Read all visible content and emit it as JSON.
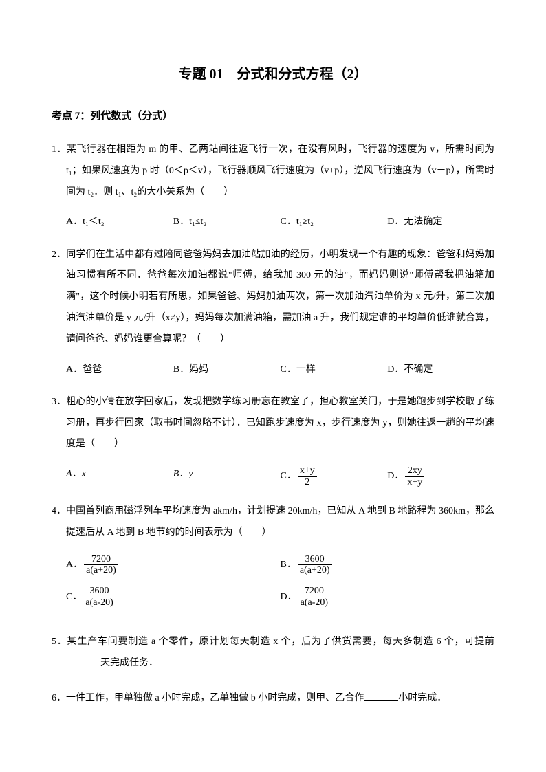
{
  "title": "专题 01　分式和分式方程（2）",
  "section_heading": "考点 7：列代数式（分式）",
  "q1": {
    "text": "1．某飞行器在相距为 m 的甲、乙两站间往返飞行一次，在没有风时，飞行器的速度为 v，所需时间为 t₁；如果风速度为 p 时（0＜p＜v），飞行器顺风飞行速度为（v+p），逆风飞行速度为（v－p），所需时间为 t₂．则 t₁、t₂的大小关系为（　　）",
    "optA": "A．t₁＜t₂",
    "optB": "B．t₁≤t₂",
    "optC": "C．t₁≥t₂",
    "optD": "D．无法确定"
  },
  "q2": {
    "text": "2．同学们在生活中都有过陪同爸爸妈妈去加油站加油的经历，小明发现一个有趣的现象：爸爸和妈妈加油习惯有所不同．爸爸每次加油都说\"师傅，给我加 300 元的油\"，而妈妈则说\"师傅帮我把油箱加满\"，这个时候小明若有所思，如果爸爸、妈妈加油两次，第一次加油汽油单价为 x 元/升，第二次加油汽油单价是 y 元/升（x≠y），妈妈每次加满油箱，需加油 a 升，我们规定谁的平均单价低谁就合算，请问爸爸、妈妈谁更合算呢？（　　）",
    "optA": "A．爸爸",
    "optB": "B．妈妈",
    "optC": "C．一样",
    "optD": "D．不确定"
  },
  "q3": {
    "text": "3．粗心的小倩在放学回家后，发现把数学练习册忘在教室了，担心教室关门，于是她跑步到学校取了练习册，再步行回家（取书时间忽略不计）．已知跑步速度为 x，步行速度为 y，则她往返一趟的平均速度是（　　）",
    "optA": "A．x",
    "optB": "B．y",
    "optC_label": "C．",
    "optC_num": "x+y",
    "optC_den": "2",
    "optD_label": "D．",
    "optD_num": "2xy",
    "optD_den": "x+y"
  },
  "q4": {
    "text": "4．中国首列商用磁浮列车平均速度为 akm/h，计划提速 20km/h，已知从 A 地到 B 地路程为 360km，那么提速后从 A 地到 B 地节约的时间表示为（　　）",
    "optA_label": "A．",
    "optA_num": "7200",
    "optA_den": "a(a+20)",
    "optB_label": "B．",
    "optB_num": "3600",
    "optB_den": "a(a+20)",
    "optC_label": "C．",
    "optC_num": "3600",
    "optC_den": "a(a-20)",
    "optD_label": "D．",
    "optD_num": "7200",
    "optD_den": "a(a-20)"
  },
  "q5": {
    "text_before": "5．某生产车间要制造 a 个零件，原计划每天制造 x 个，后为了供货需要，每天多制造 6 个，可提前",
    "text_after": "天完成任务．"
  },
  "q6": {
    "text_before": "6．一件工作，甲单独做 a 小时完成，乙单独做 b 小时完成，则甲、乙合作",
    "text_after": "小时完成．"
  }
}
